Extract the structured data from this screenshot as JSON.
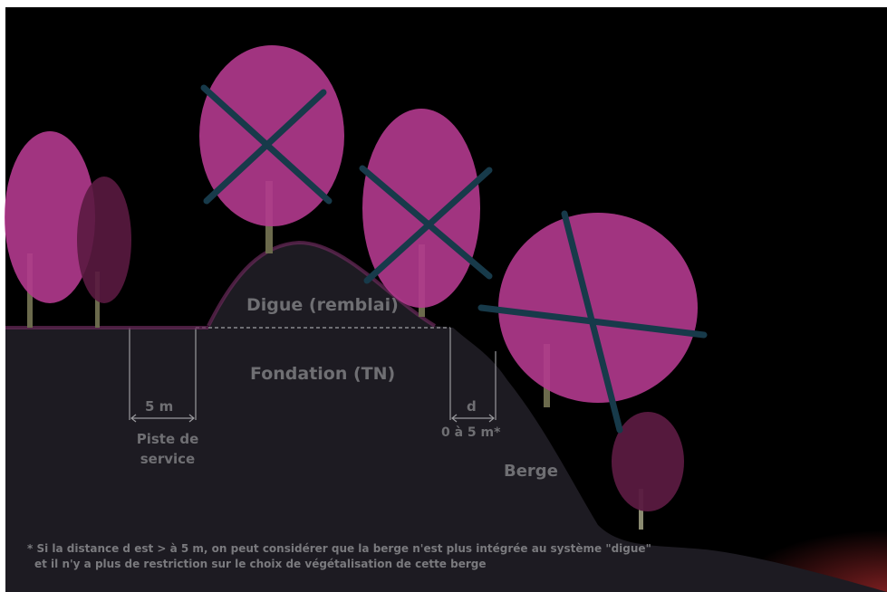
{
  "labels": {
    "digue": "Digue (remblai)",
    "fondation": "Fondation (TN)",
    "five_m": "5 m",
    "piste_line1": "Piste de",
    "piste_line2": "service",
    "d": "d",
    "distance": "0 à 5 m*",
    "berge": "Berge"
  },
  "footnote": {
    "line1": "* Si la distance d est > à 5 m, on peut considérer que la berge n'est plus intégrée au système \"digue\"",
    "line2": "et il n'y a plus de restriction sur le choix de végétalisation de cette berge"
  },
  "colors": {
    "background": "#000000",
    "ground": "#1d1b22",
    "foliage": "#b23a8e",
    "foliage_dark": "#5a1a40",
    "trunk": "#6b6a4c",
    "cross": "#173a4a",
    "water": "#5a1c1c",
    "text": "#6f6f73"
  },
  "icons": {
    "forbidden_marker": "x-cross",
    "tree": "tree-icon"
  }
}
